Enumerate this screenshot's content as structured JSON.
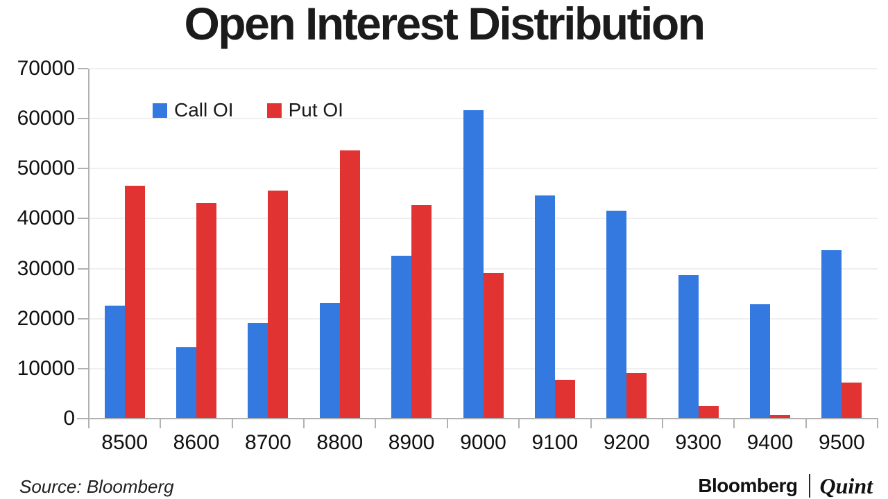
{
  "chart": {
    "title": "Open Interest Distribution",
    "legend": [
      {
        "label": "Call OI",
        "color": "#3379E0"
      },
      {
        "label": "Put OI",
        "color": "#E23333"
      }
    ]
  },
  "chart_data": {
    "type": "bar",
    "title": "Open Interest Distribution",
    "categories": [
      "8500",
      "8600",
      "8700",
      "8800",
      "8900",
      "9000",
      "9100",
      "9200",
      "9300",
      "9400",
      "9500"
    ],
    "series": [
      {
        "name": "Call OI",
        "color": "#3379E0",
        "values": [
          22500,
          14200,
          19000,
          23000,
          32500,
          61500,
          44500,
          41500,
          28600,
          22800,
          33600
        ]
      },
      {
        "name": "Put OI",
        "color": "#E23333",
        "values": [
          46500,
          43000,
          45500,
          53500,
          42500,
          29000,
          7600,
          9000,
          2400,
          500,
          7000
        ]
      }
    ],
    "xlabel": "",
    "ylabel": "",
    "ylim": [
      0,
      70000
    ],
    "ytick_step": 10000,
    "ytick_labels": [
      "0",
      "10000",
      "20000",
      "30000",
      "40000",
      "50000",
      "60000",
      "70000"
    ],
    "grid": true,
    "legend_position": "top-left-inside"
  },
  "footer": {
    "source": "Source: Bloomberg",
    "brand_left": "Bloomberg",
    "brand_right": "Quint"
  },
  "colors": {
    "call_blue": "#3379E0",
    "put_red": "#E23333",
    "gridline": "#EFEFEF",
    "axis": "#B1B1B1",
    "text": "#111111",
    "background": "#FFFFFF"
  }
}
